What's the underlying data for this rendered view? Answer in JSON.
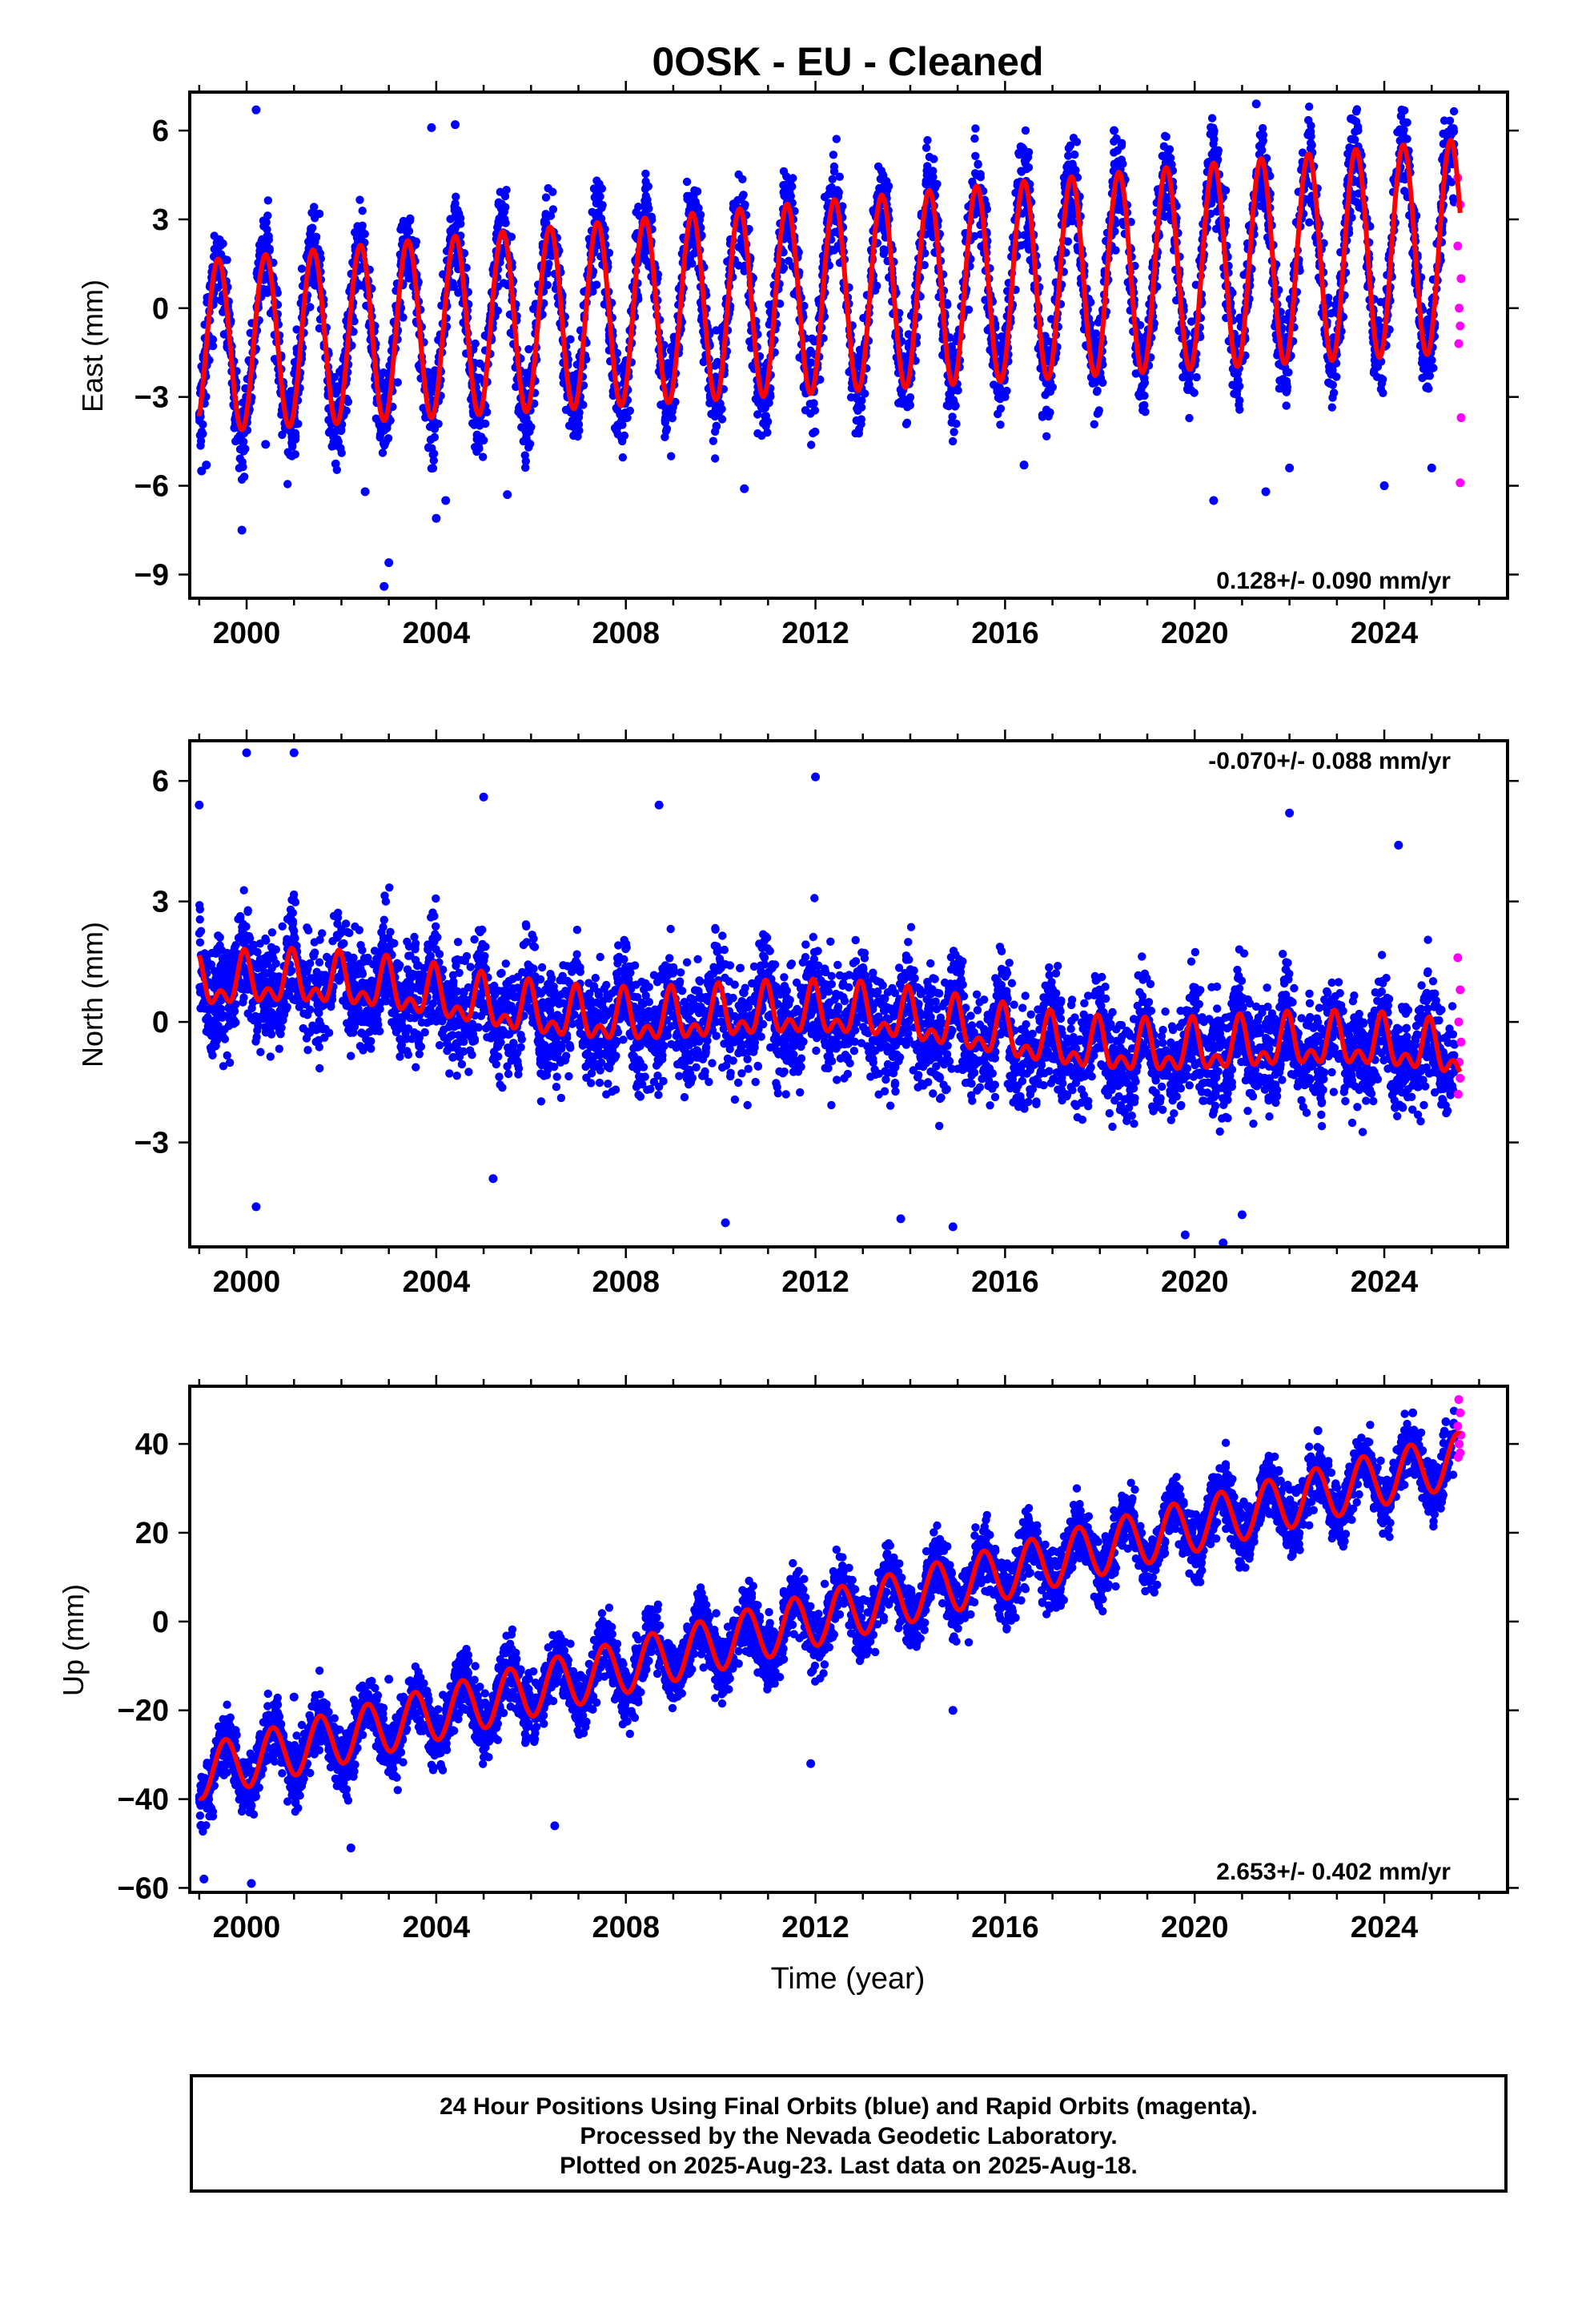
{
  "figure": {
    "title": "0OSK  - EU - Cleaned",
    "xlabel": "Time (year)",
    "caption": {
      "line1": "24 Hour Positions Using Final Orbits (blue) and Rapid Orbits (magenta).",
      "line2": "Processed by the Nevada Geodetic Laboratory.",
      "line3": "Plotted on 2025-Aug-23. Last data on 2025-Aug-18."
    },
    "colors": {
      "final_orbits": "#0000ff",
      "rapid_orbits": "#ff00ff",
      "model": "#ff0000"
    }
  },
  "chart_data": [
    {
      "type": "scatter",
      "panel": "east",
      "ylabel": "East (mm)",
      "rate_label": "0.128+/- 0.090 mm/yr",
      "xlim": [
        1998.8,
        2026.6
      ],
      "ylim": [
        -9.8,
        7.3
      ],
      "xticks": [
        2000,
        2004,
        2008,
        2012,
        2016,
        2020,
        2024
      ],
      "yticks": [
        -9,
        -6,
        -3,
        0,
        3,
        6
      ],
      "grid": false,
      "model": {
        "start_year": 1999.0,
        "end_year": 2025.6,
        "offset_start": -1.3,
        "trend_per_yr": 0.128,
        "annual_amp_start": 2.9,
        "annual_amp_end": 3.6,
        "annual_peak": 0.4,
        "semiannual_amp": 0.0,
        "semiannual_peak": 0.0,
        "wobble": 0.0
      },
      "final_orbits_points": [
        [
          1999.05,
          -5.5
        ],
        [
          1999.15,
          -5.3
        ],
        [
          2000.2,
          6.7
        ],
        [
          2000.4,
          -4.6
        ],
        [
          1999.9,
          -7.5
        ],
        [
          2002.9,
          -9.4
        ],
        [
          2003.0,
          -8.6
        ],
        [
          2004.0,
          -7.1
        ],
        [
          2002.5,
          -6.2
        ],
        [
          2004.2,
          -6.5
        ],
        [
          2005.5,
          -6.3
        ],
        [
          2003.9,
          6.1
        ],
        [
          2004.4,
          6.2
        ],
        [
          2020.4,
          -6.5
        ],
        [
          2021.5,
          -6.2
        ],
        [
          2022.0,
          -5.4
        ],
        [
          2021.3,
          6.9
        ],
        [
          2023.3,
          6.4
        ],
        [
          2018.3,
          6.0
        ],
        [
          2010.5,
          -6.1
        ],
        [
          2024.0,
          -6.0
        ],
        [
          2025.0,
          -5.4
        ],
        [
          2016.4,
          -5.3
        ]
      ],
      "rapid_orbits_points": [
        [
          2025.55,
          4.4
        ],
        [
          2025.6,
          3.5
        ],
        [
          2025.55,
          2.1
        ],
        [
          2025.62,
          1.0
        ],
        [
          2025.58,
          0.0
        ],
        [
          2025.6,
          -0.6
        ],
        [
          2025.57,
          -1.2
        ],
        [
          2025.62,
          -3.7
        ],
        [
          2025.6,
          -5.9
        ]
      ]
    },
    {
      "type": "scatter",
      "panel": "north",
      "ylabel": "North (mm)",
      "rate_label": "-0.070+/- 0.088 mm/yr",
      "xlim": [
        1998.8,
        2026.6
      ],
      "ylim": [
        -5.6,
        7.0
      ],
      "xticks": [
        2000,
        2004,
        2008,
        2012,
        2016,
        2020,
        2024
      ],
      "yticks": [
        -3,
        0,
        3,
        6
      ],
      "grid": false,
      "model": {
        "start_year": 1999.0,
        "end_year": 2025.6,
        "offset_start": 0.9,
        "trend_per_yr": -0.07,
        "annual_amp_start": 0.5,
        "annual_amp_end": 0.5,
        "annual_peak": 0.95,
        "semiannual_amp": 0.35,
        "semiannual_peak": 0.45,
        "wobble": 0.25
      },
      "final_orbits_points": [
        [
          1999.0,
          5.4
        ],
        [
          2000.0,
          6.7
        ],
        [
          2001.0,
          6.7
        ],
        [
          2000.2,
          -4.6
        ],
        [
          2005.2,
          -3.9
        ],
        [
          2010.1,
          -5.0
        ],
        [
          2012.0,
          6.1
        ],
        [
          2013.8,
          -4.9
        ],
        [
          2014.9,
          -5.1
        ],
        [
          2019.8,
          -5.3
        ],
        [
          2020.6,
          -5.5
        ],
        [
          2021.0,
          -4.8
        ],
        [
          2022.0,
          5.2
        ],
        [
          2024.3,
          4.4
        ],
        [
          2005.0,
          5.6
        ],
        [
          2008.7,
          5.4
        ]
      ],
      "rapid_orbits_points": [
        [
          2025.55,
          1.6
        ],
        [
          2025.6,
          0.8
        ],
        [
          2025.57,
          0.0
        ],
        [
          2025.62,
          -0.5
        ],
        [
          2025.58,
          -1.0
        ],
        [
          2025.6,
          -1.4
        ],
        [
          2025.56,
          -1.8
        ]
      ]
    },
    {
      "type": "scatter",
      "panel": "up",
      "ylabel": "Up (mm)",
      "rate_label": "2.653+/- 0.402 mm/yr",
      "xlim": [
        1998.8,
        2026.6
      ],
      "ylim": [
        -61,
        53
      ],
      "xticks": [
        2000,
        2004,
        2008,
        2012,
        2016,
        2020,
        2024
      ],
      "yticks": [
        -60,
        -40,
        -20,
        0,
        20,
        40
      ],
      "grid": false,
      "model": {
        "start_year": 1999.0,
        "end_year": 2025.6,
        "offset_start": -34.0,
        "trend_per_yr": 2.653,
        "annual_amp_start": 6.0,
        "annual_amp_end": 6.0,
        "annual_peak": 0.55,
        "semiannual_amp": 0.0,
        "semiannual_peak": 0.0,
        "wobble": 0.0
      },
      "final_orbits_points": [
        [
          1999.1,
          -58.0
        ],
        [
          2000.1,
          -59.0
        ],
        [
          2002.2,
          -51.0
        ],
        [
          2006.5,
          -46.0
        ],
        [
          2011.9,
          -32.0
        ],
        [
          2014.9,
          -20.0
        ],
        [
          2025.3,
          45.0
        ],
        [
          2022.6,
          43.0
        ],
        [
          2024.6,
          47.0
        ],
        [
          2001.0,
          -17.0
        ],
        [
          2003.0,
          -13.0
        ]
      ],
      "rapid_orbits_points": [
        [
          2025.57,
          50.0
        ],
        [
          2025.6,
          47.0
        ],
        [
          2025.55,
          44.0
        ],
        [
          2025.62,
          42.0
        ],
        [
          2025.58,
          40.0
        ],
        [
          2025.6,
          38.0
        ],
        [
          2025.56,
          37.0
        ]
      ]
    }
  ]
}
